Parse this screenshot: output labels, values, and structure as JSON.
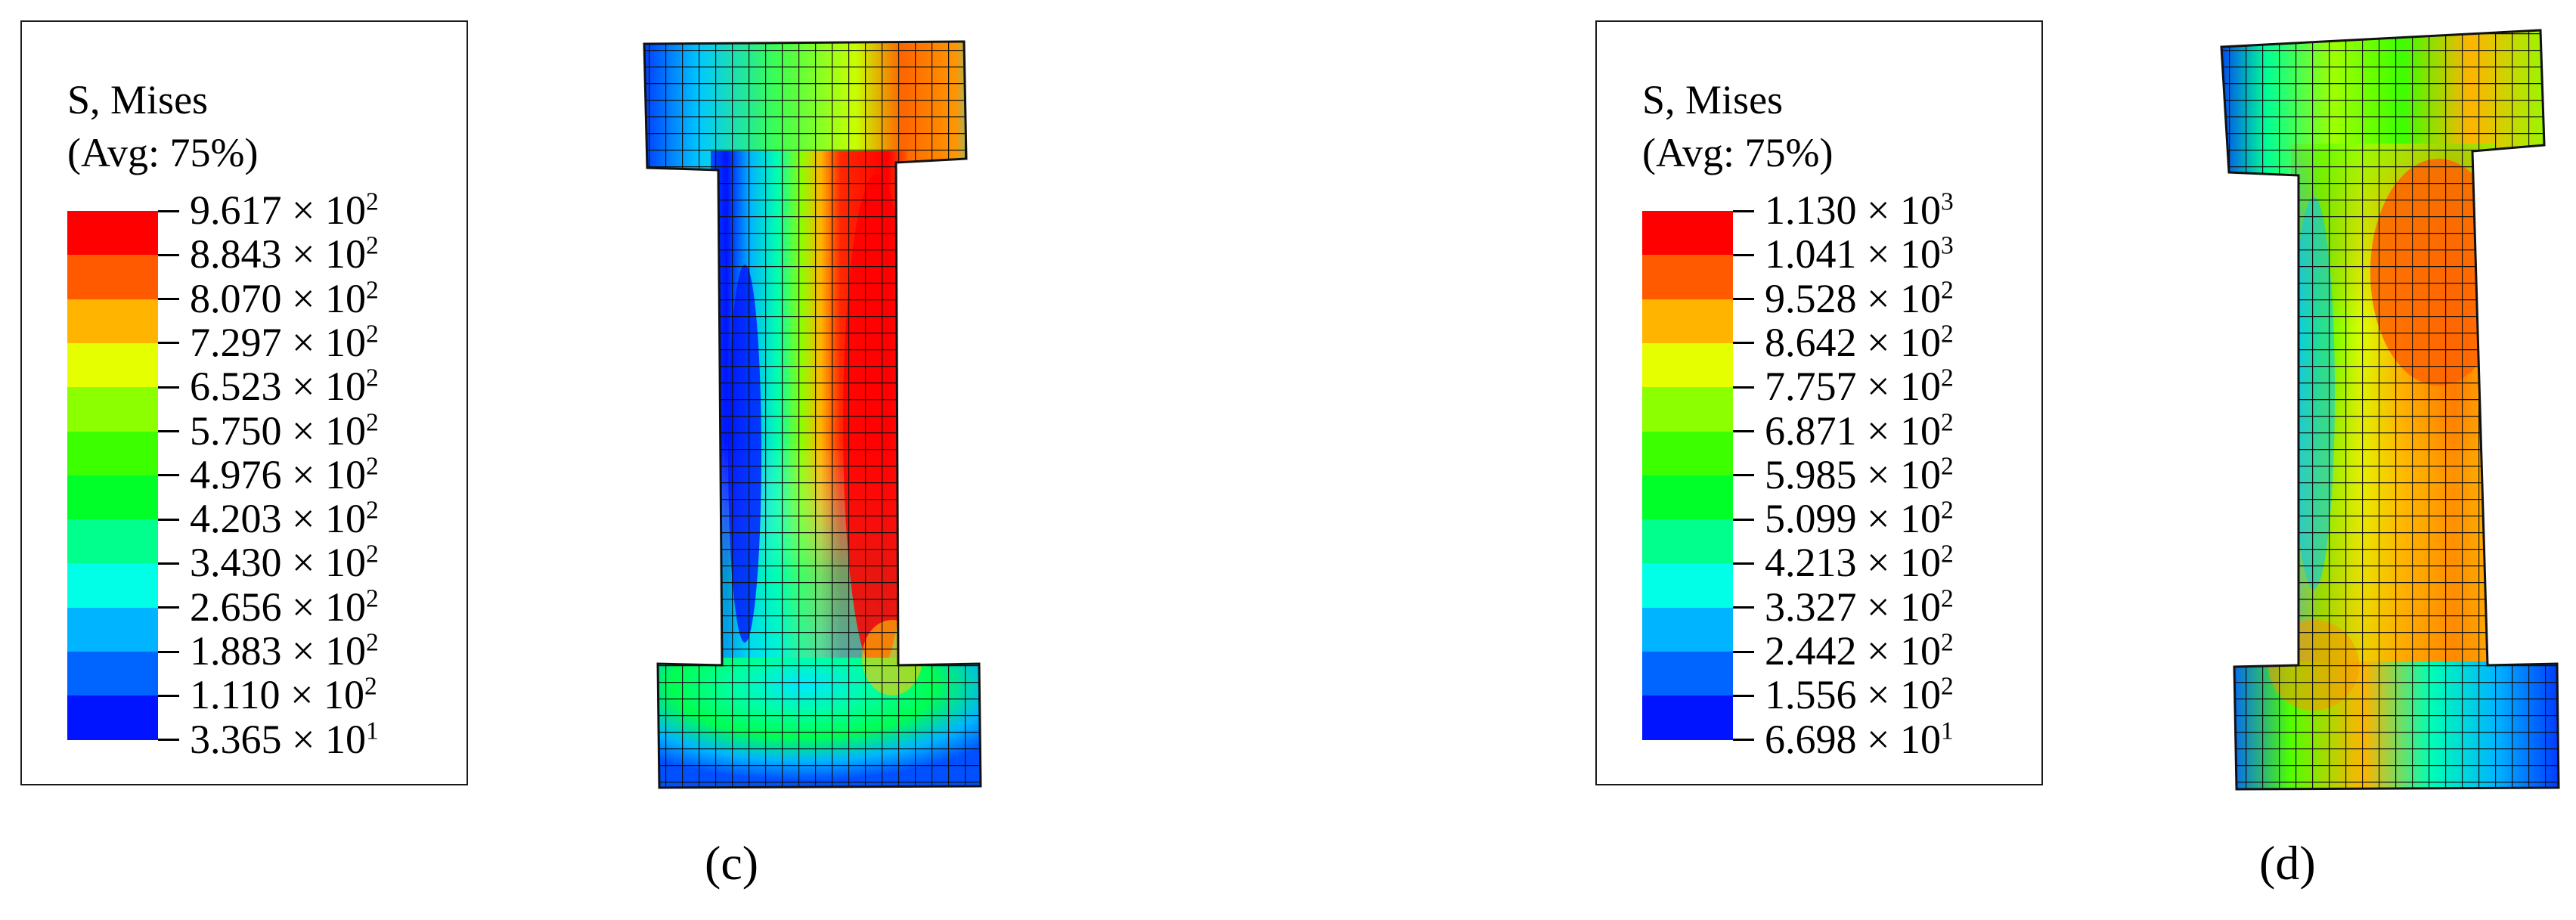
{
  "legend_c": {
    "title_line1": "S, Mises",
    "title_line2": "(Avg: 75%)",
    "ticks": [
      {
        "mant": "9.617",
        "exp": "2"
      },
      {
        "mant": "8.843",
        "exp": "2"
      },
      {
        "mant": "8.070",
        "exp": "2"
      },
      {
        "mant": "7.297",
        "exp": "2"
      },
      {
        "mant": "6.523",
        "exp": "2"
      },
      {
        "mant": "5.750",
        "exp": "2"
      },
      {
        "mant": "4.976",
        "exp": "2"
      },
      {
        "mant": "4.203",
        "exp": "2"
      },
      {
        "mant": "3.430",
        "exp": "2"
      },
      {
        "mant": "2.656",
        "exp": "2"
      },
      {
        "mant": "1.883",
        "exp": "2"
      },
      {
        "mant": "1.110",
        "exp": "2"
      },
      {
        "mant": "3.365",
        "exp": "1"
      }
    ]
  },
  "legend_d": {
    "title_line1": "S, Mises",
    "title_line2": "(Avg: 75%)",
    "ticks": [
      {
        "mant": "1.130",
        "exp": "3"
      },
      {
        "mant": "1.041",
        "exp": "3"
      },
      {
        "mant": "9.528",
        "exp": "2"
      },
      {
        "mant": "8.642",
        "exp": "2"
      },
      {
        "mant": "7.757",
        "exp": "2"
      },
      {
        "mant": "6.871",
        "exp": "2"
      },
      {
        "mant": "5.985",
        "exp": "2"
      },
      {
        "mant": "5.099",
        "exp": "2"
      },
      {
        "mant": "4.213",
        "exp": "2"
      },
      {
        "mant": "3.327",
        "exp": "2"
      },
      {
        "mant": "2.442",
        "exp": "2"
      },
      {
        "mant": "1.556",
        "exp": "2"
      },
      {
        "mant": "6.698",
        "exp": "1"
      }
    ]
  },
  "times_symbol": "×",
  "legend_colors": [
    "#ff0000",
    "#ff5a00",
    "#ffb400",
    "#e6ff00",
    "#8cff00",
    "#3cff00",
    "#00ff28",
    "#00ff8c",
    "#00ffe6",
    "#00b4ff",
    "#0064ff",
    "#0014ff"
  ],
  "panel_c_label": "(c)",
  "panel_d_label": "(d)"
}
